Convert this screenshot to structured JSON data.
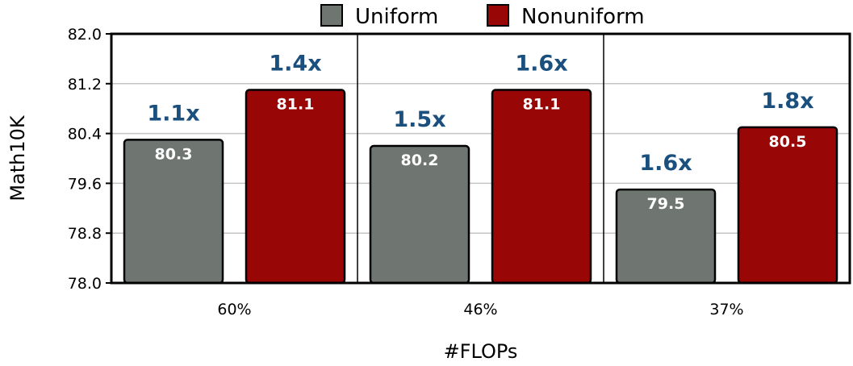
{
  "chart_data": {
    "type": "bar",
    "title": "",
    "xlabel": "#FLOPs",
    "ylabel": "Math10K",
    "categories": [
      "60%",
      "46%",
      "37%"
    ],
    "ylim": [
      78.0,
      82.0
    ],
    "yticks": [
      "78.0",
      "78.8",
      "79.6",
      "80.4",
      "81.2",
      "82.0"
    ],
    "legend_position": "top-center",
    "grid": true,
    "series": [
      {
        "name": "Uniform",
        "color": "#6f7672",
        "values": [
          80.3,
          80.2,
          79.5
        ],
        "value_labels": [
          "80.3",
          "80.2",
          "79.5"
        ],
        "annotations": [
          "1.1x",
          "1.5x",
          "1.6x"
        ]
      },
      {
        "name": "Nonuniform",
        "color": "#990606",
        "values": [
          81.1,
          81.1,
          80.5
        ],
        "value_labels": [
          "81.1",
          "81.1",
          "80.5"
        ],
        "annotations": [
          "1.4x",
          "1.6x",
          "1.8x"
        ]
      }
    ],
    "annotation_color": "#1b4f7e"
  }
}
